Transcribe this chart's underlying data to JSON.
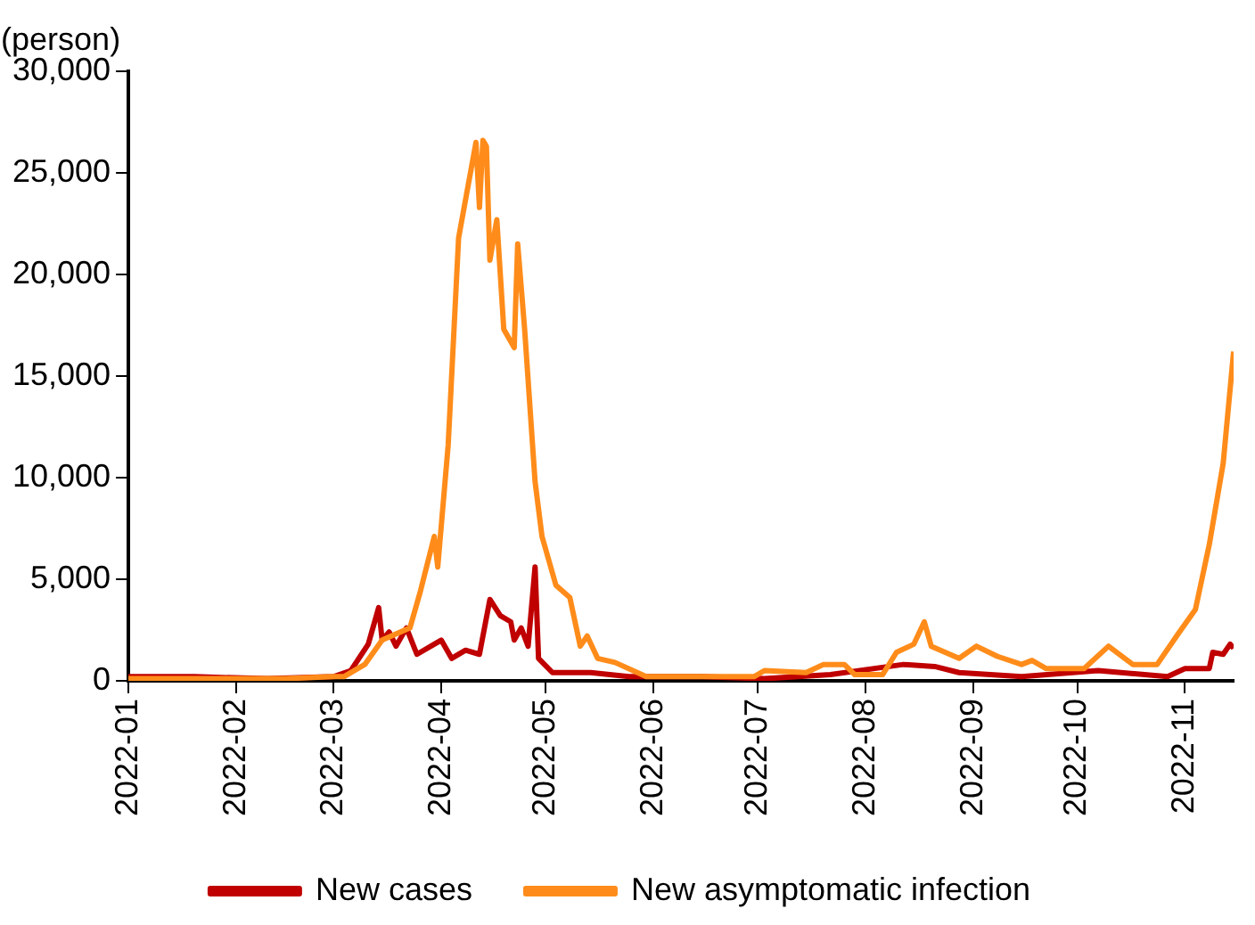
{
  "chart_data": {
    "type": "line",
    "ylabel": "(person)",
    "xlim": [
      "2022-01-01",
      "2022-11-15"
    ],
    "xticks": [
      {
        "value": "2022-01-01",
        "label": "2022-01"
      },
      {
        "value": "2022-02-01",
        "label": "2022-02"
      },
      {
        "value": "2022-03-01",
        "label": "2022-03"
      },
      {
        "value": "2022-04-01",
        "label": "2022-04"
      },
      {
        "value": "2022-05-01",
        "label": "2022-05"
      },
      {
        "value": "2022-06-01",
        "label": "2022-06"
      },
      {
        "value": "2022-07-01",
        "label": "2022-07"
      },
      {
        "value": "2022-08-01",
        "label": "2022-08"
      },
      {
        "value": "2022-09-01",
        "label": "2022-09"
      },
      {
        "value": "2022-10-01",
        "label": "2022-10"
      },
      {
        "value": "2022-11-01",
        "label": "2022-11"
      }
    ],
    "ylim": [
      0,
      30000
    ],
    "yticks": [
      0,
      {
        "value": 5000,
        "label": "5,000"
      },
      {
        "value": 10000,
        "label": "10,000"
      },
      {
        "value": 15000,
        "label": "15,000"
      },
      {
        "value": 20000,
        "label": "20,000"
      },
      {
        "value": 25000,
        "label": "25,000"
      },
      {
        "value": 30000,
        "label": "30,000"
      }
    ],
    "grid": false,
    "legend": "bottom",
    "line_style": "solid",
    "series": [
      {
        "name": "New cases",
        "color": "#c00000",
        "x": [
          "2022-01-01",
          "2022-01-20",
          "2022-02-10",
          "2022-03-01",
          "2022-03-06",
          "2022-03-11",
          "2022-03-14",
          "2022-03-15",
          "2022-03-17",
          "2022-03-19",
          "2022-03-22",
          "2022-03-25",
          "2022-03-30",
          "2022-04-01",
          "2022-04-04",
          "2022-04-08",
          "2022-04-12",
          "2022-04-15",
          "2022-04-18",
          "2022-04-21",
          "2022-04-22",
          "2022-04-24",
          "2022-04-26",
          "2022-04-28",
          "2022-04-29",
          "2022-05-03",
          "2022-05-14",
          "2022-05-25",
          "2022-06-15",
          "2022-07-03",
          "2022-07-22",
          "2022-08-12",
          "2022-08-21",
          "2022-08-28",
          "2022-09-15",
          "2022-10-07",
          "2022-10-27",
          "2022-11-01",
          "2022-11-08",
          "2022-11-09",
          "2022-11-12",
          "2022-11-14",
          "2022-11-15"
        ],
        "values": [
          200,
          200,
          100,
          200,
          500,
          1800,
          3600,
          2000,
          2400,
          1700,
          2600,
          1300,
          1800,
          2000,
          1100,
          1500,
          1300,
          4000,
          3200,
          2900,
          2000,
          2600,
          1700,
          5600,
          1100,
          400,
          400,
          200,
          200,
          100,
          300,
          800,
          700,
          400,
          200,
          500,
          200,
          600,
          600,
          1400,
          1300,
          1800,
          1600
        ]
      },
      {
        "name": "New asymptomatic infection",
        "color": "#ff8c1a",
        "x": [
          "2022-01-01",
          "2022-01-25",
          "2022-02-15",
          "2022-03-01",
          "2022-03-04",
          "2022-03-10",
          "2022-03-15",
          "2022-03-23",
          "2022-03-26",
          "2022-03-30",
          "2022-03-31",
          "2022-04-03",
          "2022-04-06",
          "2022-04-11",
          "2022-04-12",
          "2022-04-13",
          "2022-04-14",
          "2022-04-15",
          "2022-04-17",
          "2022-04-19",
          "2022-04-22",
          "2022-04-23",
          "2022-04-25",
          "2022-04-28",
          "2022-04-30",
          "2022-05-04",
          "2022-05-08",
          "2022-05-11",
          "2022-05-13",
          "2022-05-16",
          "2022-05-21",
          "2022-05-30",
          "2022-06-15",
          "2022-06-30",
          "2022-07-03",
          "2022-07-15",
          "2022-07-20",
          "2022-07-26",
          "2022-07-29",
          "2022-08-06",
          "2022-08-10",
          "2022-08-15",
          "2022-08-18",
          "2022-08-20",
          "2022-08-28",
          "2022-09-02",
          "2022-09-08",
          "2022-09-15",
          "2022-09-18",
          "2022-09-22",
          "2022-10-03",
          "2022-10-10",
          "2022-10-17",
          "2022-10-24",
          "2022-10-30",
          "2022-11-04",
          "2022-11-08",
          "2022-11-12",
          "2022-11-15"
        ],
        "values": [
          100,
          100,
          100,
          200,
          200,
          800,
          2000,
          2600,
          4400,
          7100,
          5600,
          11600,
          21800,
          26500,
          23300,
          26600,
          26300,
          20700,
          22700,
          17300,
          16400,
          21500,
          17300,
          9800,
          7100,
          4700,
          4100,
          1700,
          2200,
          1100,
          900,
          200,
          200,
          200,
          500,
          400,
          800,
          800,
          300,
          300,
          1400,
          1800,
          2900,
          1700,
          1100,
          1700,
          1200,
          800,
          1000,
          600,
          600,
          1700,
          800,
          800,
          2300,
          3500,
          6700,
          10700,
          16200
        ]
      }
    ]
  }
}
